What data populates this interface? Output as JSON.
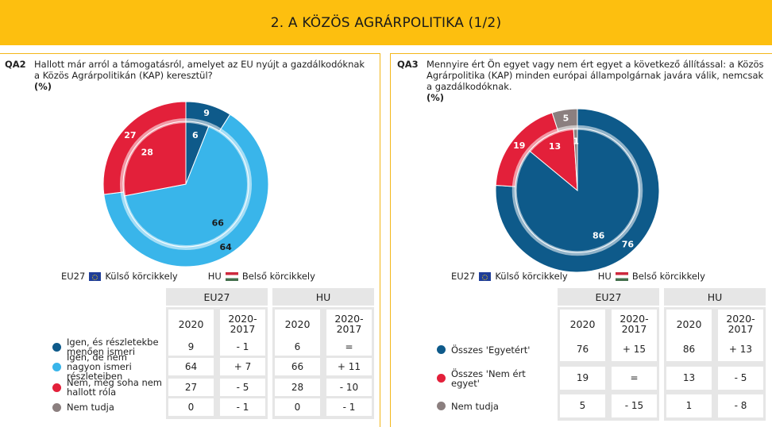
{
  "banner": {
    "title": "2. A KÖZÖS AGRÁRPOLITIKA (1/2)"
  },
  "legend": {
    "eu_label": "EU27",
    "eu_ring": "Külső körcikkely",
    "hu_label": "HU",
    "hu_ring": "Belső körcikkely"
  },
  "table_headers": {
    "eu": "EU27",
    "hu": "HU",
    "col_year": "2020",
    "col_diff": "2020-\n2017"
  },
  "chart_data": [
    {
      "type": "pie",
      "id": "QA2",
      "question": "Hallott már arról a támogatásról, amelyet az EU nyújt a gazdálkodóknak a Közös Agrárpolitikán (KAP) keresztül?",
      "unit": "(%)",
      "categories": [
        "Igen, és részletekbe menően ismeri",
        "Igen, de nem nagyon ismeri részleteiben",
        "Nem, még soha nem hallott róla",
        "Nem tudja"
      ],
      "colors": [
        "#0E5A8A",
        "#39B5EA",
        "#E3203A",
        "#8B7F7F"
      ],
      "series": [
        {
          "name": "EU27",
          "values": [
            9,
            64,
            27,
            0
          ]
        },
        {
          "name": "HU",
          "values": [
            6,
            66,
            28,
            0
          ]
        }
      ],
      "table": [
        [
          "9",
          "- 1",
          "6",
          "="
        ],
        [
          "64",
          "+ 7",
          "66",
          "+ 11"
        ],
        [
          "27",
          "- 5",
          "28",
          "- 10"
        ],
        [
          "0",
          "- 1",
          "0",
          "- 1"
        ]
      ]
    },
    {
      "type": "pie",
      "id": "QA3",
      "question": "Mennyire ért Ön egyet vagy nem ért egyet a következő állítással: a Közös Agrárpolitika (KAP) minden európai állampolgárnak javára válik, nemcsak a gazdálkodóknak.",
      "unit": "(%)",
      "categories": [
        "Összes 'Egyetért'",
        "Összes 'Nem ért egyet'",
        "Nem tudja"
      ],
      "colors": [
        "#0E5A8A",
        "#E3203A",
        "#8B7F7F"
      ],
      "series": [
        {
          "name": "EU27",
          "values": [
            76,
            19,
            5
          ]
        },
        {
          "name": "HU",
          "values": [
            86,
            13,
            1
          ]
        }
      ],
      "table": [
        [
          "76",
          "+ 15",
          "86",
          "+ 13"
        ],
        [
          "19",
          "=",
          "13",
          "- 5"
        ],
        [
          "5",
          "- 15",
          "1",
          "- 8"
        ]
      ]
    }
  ]
}
